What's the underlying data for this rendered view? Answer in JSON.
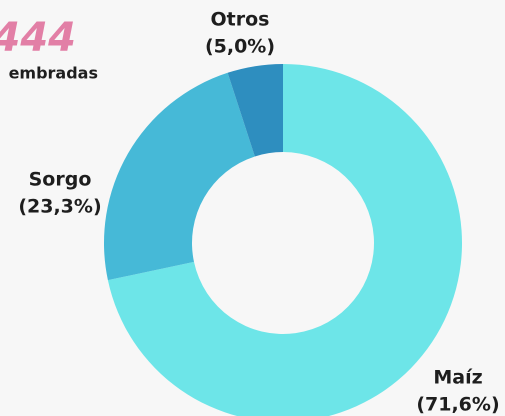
{
  "chart_data": {
    "type": "pie",
    "categories": [
      "Maíz",
      "Sorgo",
      "Otros"
    ],
    "values": [
      71.6,
      23.3,
      5.0
    ],
    "value_labels": [
      "(71,6%)",
      "(23,3%)",
      "(5,0%)"
    ],
    "colors": [
      "#6de5e8",
      "#46b9d7",
      "#2e8ebf"
    ],
    "donut": true,
    "annotations": [
      "444",
      "embradas"
    ]
  }
}
